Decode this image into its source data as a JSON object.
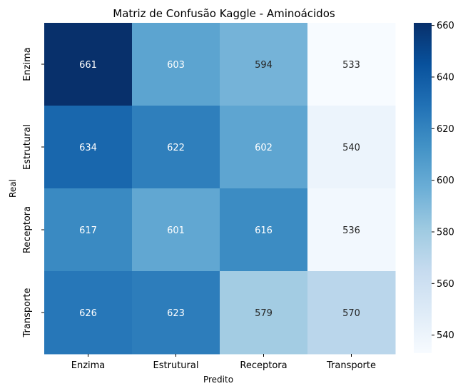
{
  "chart_data": {
    "type": "heatmap",
    "title": "Matriz de Confusão Kaggle - Aminoácidos",
    "xlabel": "Predito",
    "ylabel": "Real",
    "x_categories": [
      "Enzima",
      "Estrutural",
      "Receptora",
      "Transporte"
    ],
    "y_categories": [
      "Enzima",
      "Estrutural",
      "Receptora",
      "Transporte"
    ],
    "values": [
      [
        661,
        603,
        594,
        533
      ],
      [
        634,
        622,
        602,
        540
      ],
      [
        617,
        601,
        616,
        536
      ],
      [
        626,
        623,
        579,
        570
      ]
    ],
    "colorscale": "Blues",
    "vmin": 533,
    "vmax": 661,
    "colorbar_ticks": [
      540,
      560,
      580,
      600,
      620,
      640,
      660
    ]
  }
}
